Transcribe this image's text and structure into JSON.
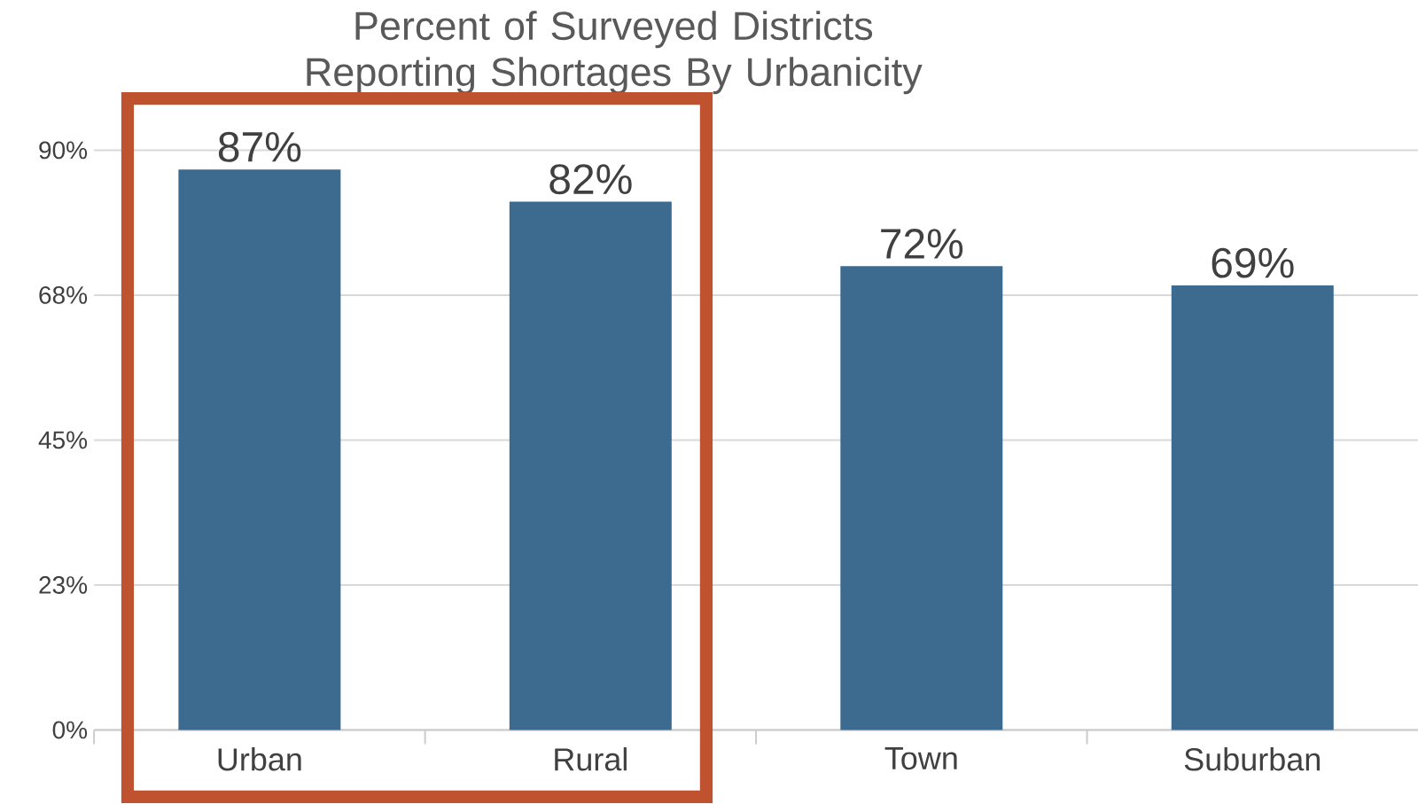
{
  "chart_data": {
    "type": "bar",
    "title": "Percent of Surveyed Districts Reporting Shortages By Urbanicity",
    "categories": [
      "Urban",
      "Rural",
      "Town",
      "Suburban"
    ],
    "values": [
      87,
      82,
      72,
      69
    ],
    "value_labels": [
      "87%",
      "82%",
      "72%",
      "69%"
    ],
    "color": "#3d6a8f",
    "ylim": [
      0,
      90
    ],
    "yticks": [
      {
        "value": 0,
        "label": "0%"
      },
      {
        "value": 22.5,
        "label": "23%"
      },
      {
        "value": 45,
        "label": "45%"
      },
      {
        "value": 67.5,
        "label": "68%"
      },
      {
        "value": 90,
        "label": "90%"
      }
    ],
    "grid": "y"
  }
}
